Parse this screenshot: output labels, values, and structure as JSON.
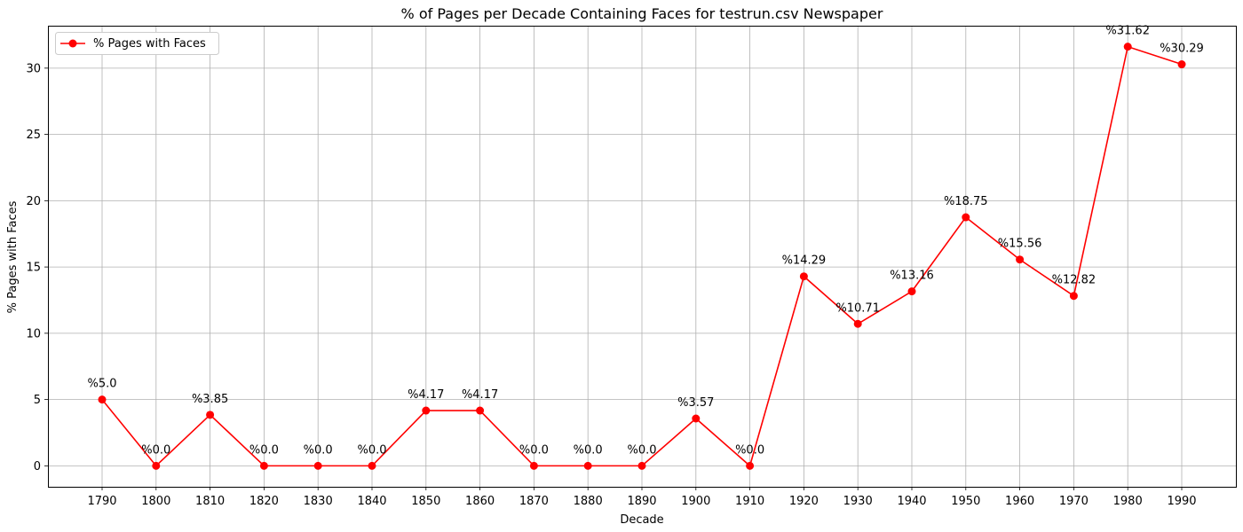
{
  "chart_data": {
    "type": "line",
    "title": "% of Pages per Decade Containing Faces for testrun.csv Newspaper",
    "xlabel": "Decade",
    "ylabel": "% Pages with Faces",
    "categories": [
      "1790",
      "1800",
      "1810",
      "1820",
      "1830",
      "1840",
      "1850",
      "1860",
      "1870",
      "1880",
      "1890",
      "1900",
      "1910",
      "1920",
      "1930",
      "1940",
      "1950",
      "1960",
      "1970",
      "1980",
      "1990"
    ],
    "series": [
      {
        "name": "% Pages with Faces",
        "color": "#ff0000",
        "values": [
          5.0,
          0.0,
          3.85,
          0.0,
          0.0,
          0.0,
          4.17,
          4.17,
          0.0,
          0.0,
          0.0,
          3.57,
          0.0,
          14.29,
          10.71,
          13.16,
          18.75,
          15.56,
          12.82,
          31.62,
          30.29
        ]
      }
    ],
    "data_labels": [
      "%5.0",
      "%0.0",
      "%3.85",
      "%0.0",
      "%0.0",
      "%0.0",
      "%4.17",
      "%4.17",
      "%0.0",
      "%0.0",
      "%0.0",
      "%3.57",
      "%0.0",
      "%14.29",
      "%10.71",
      "%13.16",
      "%18.75",
      "%15.56",
      "%12.82",
      "%31.62",
      "%30.29"
    ],
    "yticks": [
      "0",
      "5",
      "10",
      "15",
      "20",
      "25",
      "30"
    ],
    "ylim": [
      -1.58,
      33.2
    ],
    "grid": true,
    "legend": "top-left"
  }
}
